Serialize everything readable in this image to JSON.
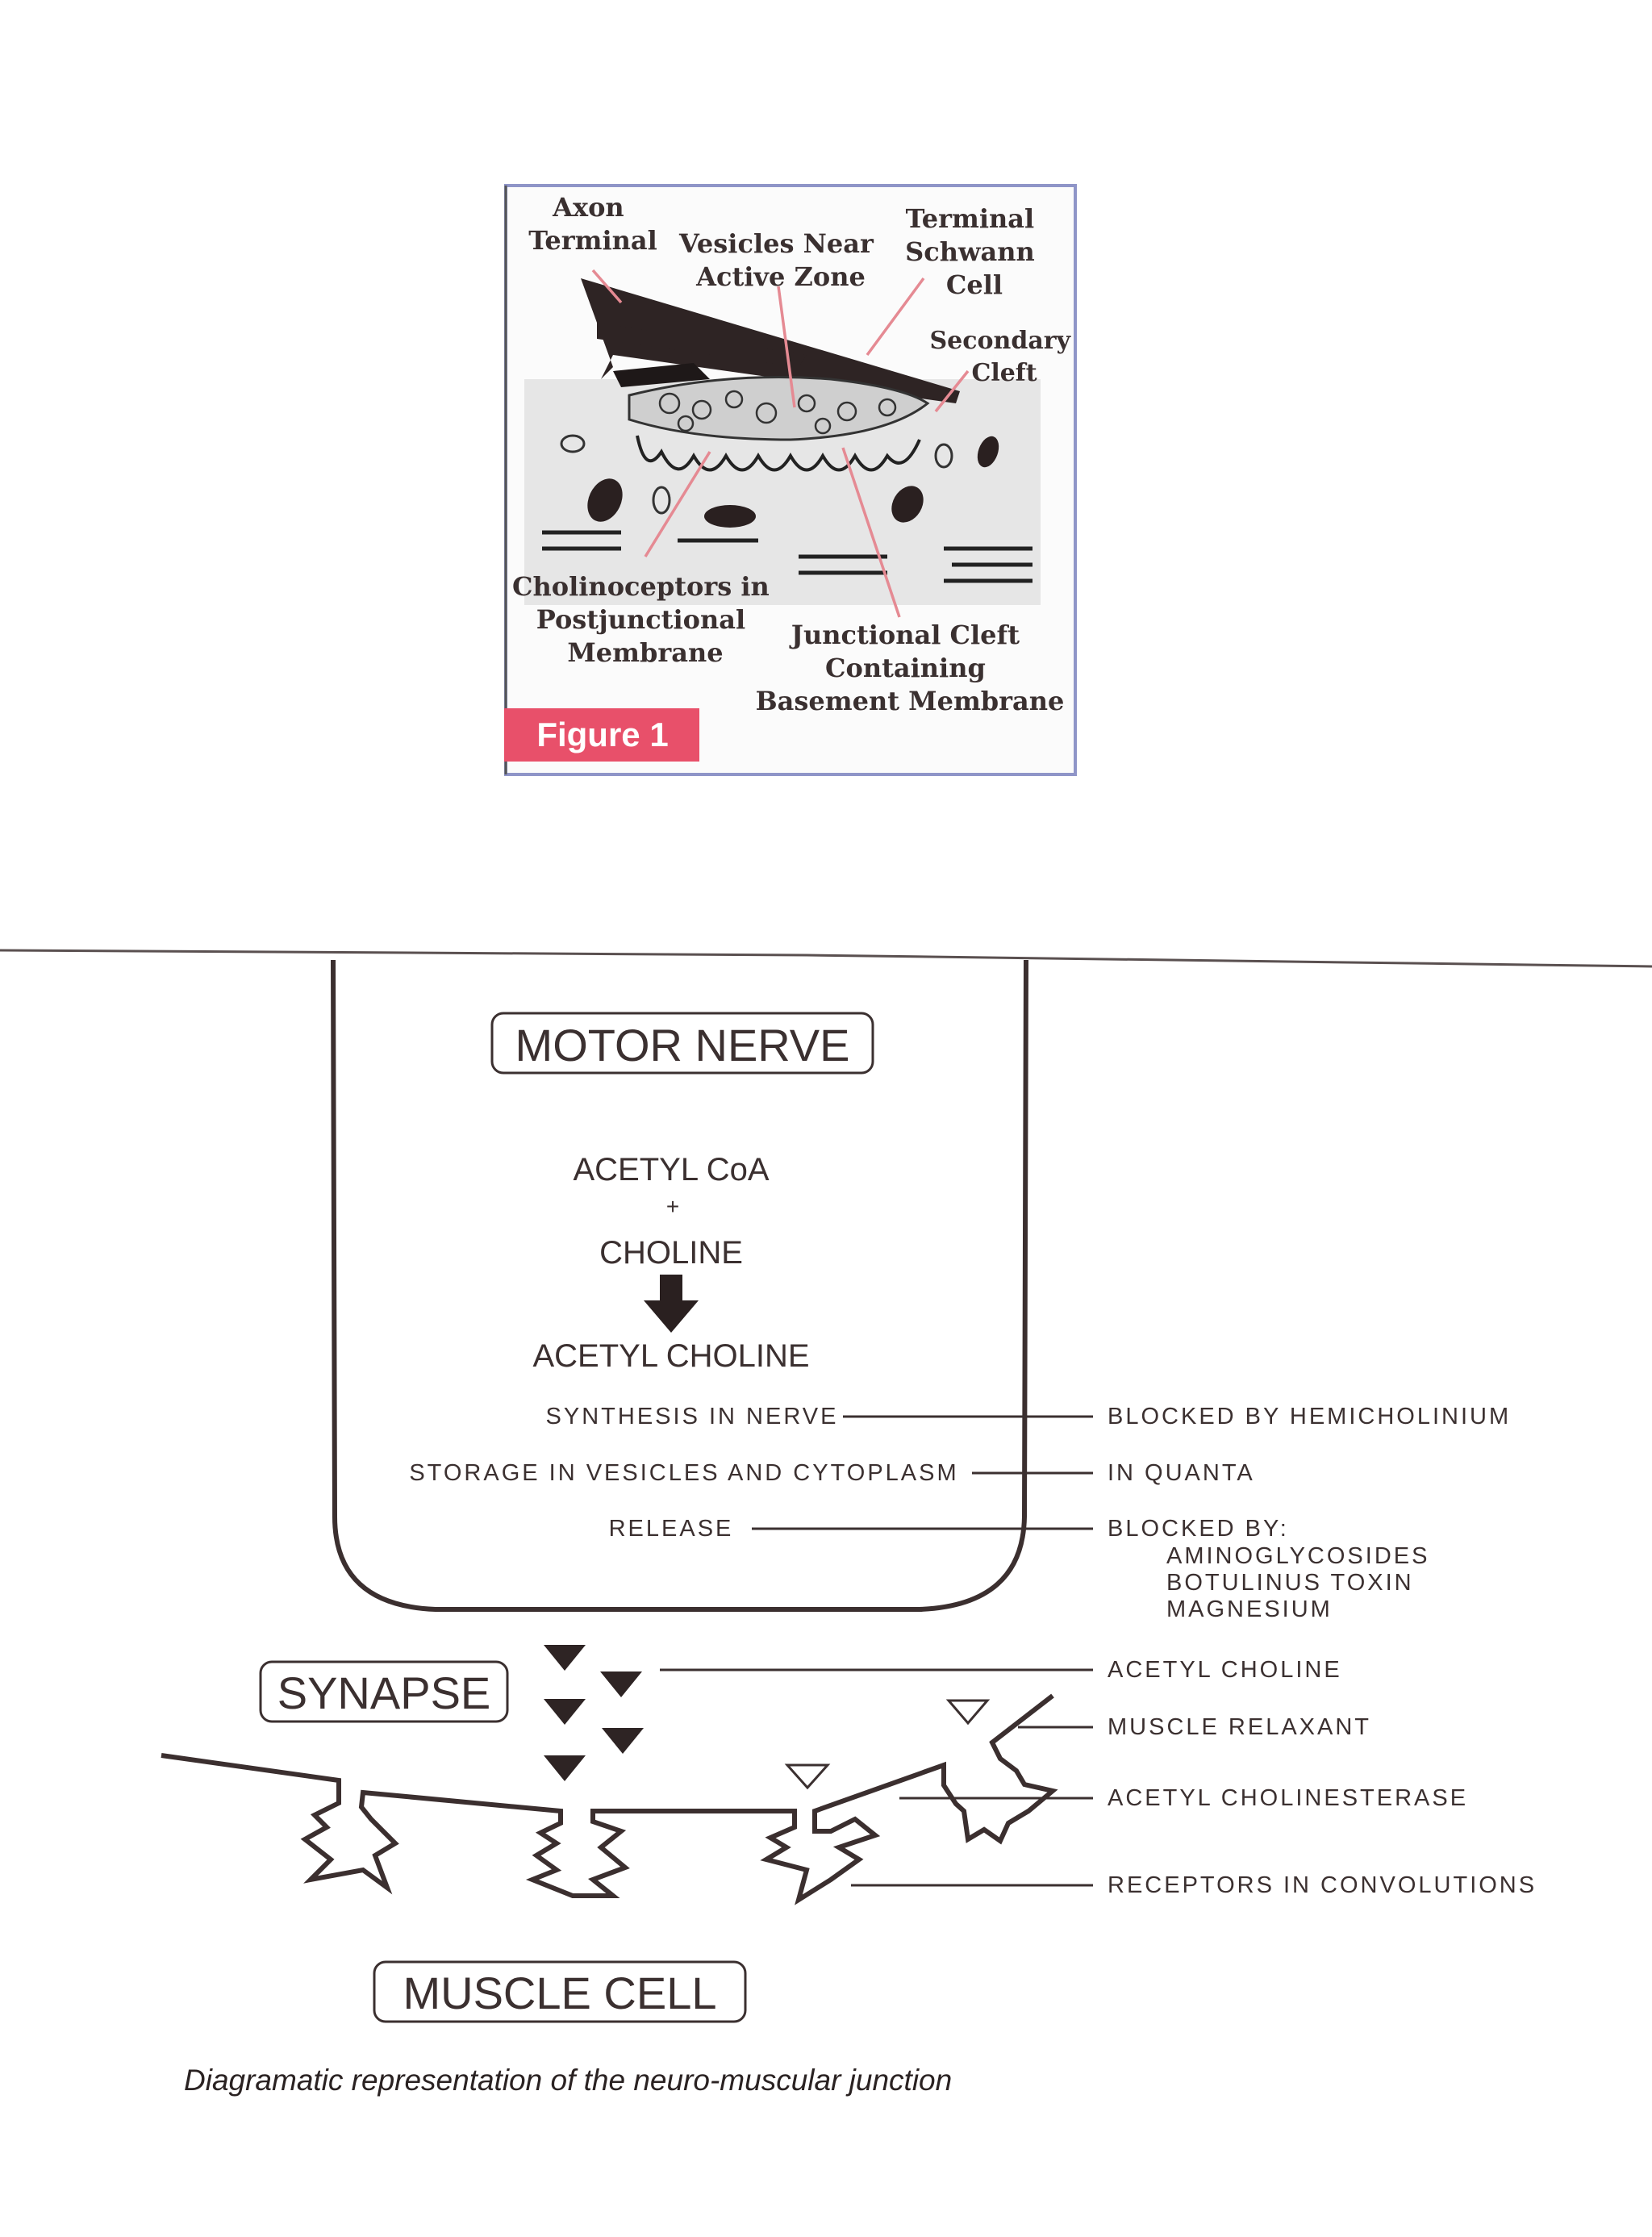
{
  "figure1": {
    "labels": {
      "axon_terminal": [
        "Axon",
        "Terminal"
      ],
      "vesicles": [
        "Vesicles Near",
        "Active Zone"
      ],
      "schwann": [
        "Terminal",
        "Schwann",
        "Cell"
      ],
      "secondary_cleft": [
        "Secondary",
        "Cleft"
      ],
      "cholinoceptors": [
        "Cholinoceptors in",
        "Postjunctional",
        "Membrane"
      ],
      "junctional_cleft": [
        "Junctional Cleft",
        "Containing",
        "Basement Membrane"
      ]
    },
    "badge": "Figure 1",
    "colors": {
      "badge": "#e8506a",
      "leader": "#e58a93",
      "frame": "#8f95c8"
    }
  },
  "diagram": {
    "boxes": {
      "motor_nerve": "MOTOR NERVE",
      "synapse": "SYNAPSE",
      "muscle_cell": "MUSCLE CELL"
    },
    "synthesis": {
      "acetyl_coa": "ACETYL CoA",
      "plus": "+",
      "choline": "CHOLINE",
      "acetyl_choline": "ACETYL CHOLINE"
    },
    "steps": {
      "synthesis": "SYNTHESIS IN NERVE",
      "storage": "STORAGE IN VESICLES AND CYTOPLASM",
      "release": "RELEASE"
    },
    "notes": {
      "blocked_hemi": "BLOCKED BY HEMICHOLINIUM",
      "in_quanta": "IN QUANTA",
      "blocked_by": "BLOCKED BY:",
      "aminoglycosides": "AMINOGLYCOSIDES",
      "botulinus": "BOTULINUS TOXIN",
      "magnesium": "MAGNESIUM",
      "acetyl_choline": "ACETYL CHOLINE",
      "muscle_relaxant": "MUSCLE RELAXANT",
      "cholinesterase": "ACETYL CHOLINESTERASE",
      "receptors": "RECEPTORS IN CONVOLUTIONS"
    },
    "caption": "Diagramatic representation of the neuro-muscular junction"
  }
}
